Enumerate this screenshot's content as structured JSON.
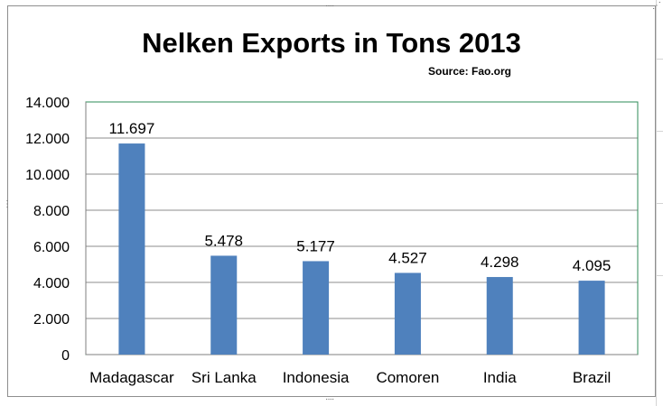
{
  "chart_data": {
    "type": "bar",
    "title": "Nelken Exports in Tons 2013",
    "subtitle": "Source: Fao.org",
    "categories": [
      "Madagascar",
      "Sri Lanka",
      "Indonesia",
      "Comoren",
      "India",
      "Brazil"
    ],
    "values": [
      11697,
      5478,
      5177,
      4527,
      4298,
      4095
    ],
    "data_labels": [
      "11.697",
      "5.478",
      "5.177",
      "4.527",
      "4.298",
      "4.095"
    ],
    "yticks": [
      0,
      2000,
      4000,
      6000,
      8000,
      10000,
      12000,
      14000
    ],
    "ytick_labels": [
      "0",
      "2.000",
      "4.000",
      "6.000",
      "8.000",
      "10.000",
      "12.000",
      "14.000"
    ],
    "ylim": [
      0,
      14000
    ],
    "xlabel": "",
    "ylabel": "",
    "grid": true,
    "legend": "none",
    "colors": {
      "bar": "#4f81bd",
      "plot_border": "#2e8b57",
      "gridline": "#8c8c8c"
    }
  }
}
